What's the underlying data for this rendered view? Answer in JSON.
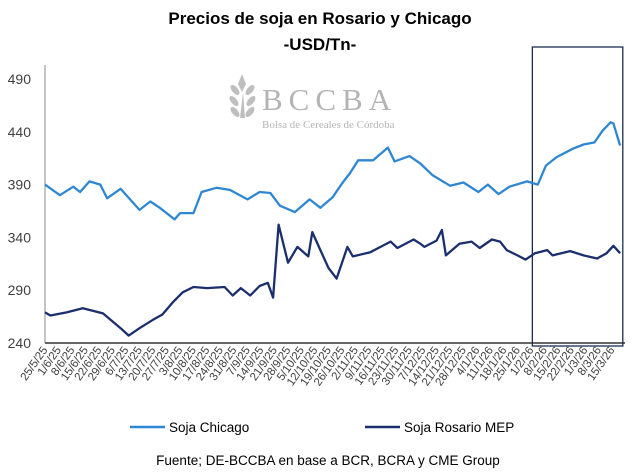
{
  "chart_data": {
    "type": "line",
    "title": "Precios de soja en Rosario y Chicago",
    "subtitle": "-USD/Tn-",
    "xlabel": "",
    "ylabel": "",
    "ylim": [
      240,
      490
    ],
    "yticks": [
      490,
      440,
      390,
      340,
      290,
      240
    ],
    "x_unit": "weeks since 25/5/25",
    "xlim": [
      0,
      43
    ],
    "x_tick_labels": [
      "25/5/25",
      "1/6/25",
      "8/6/25",
      "15/6/25",
      "22/6/25",
      "29/6/25",
      "6/7/25",
      "13/7/25",
      "20/7/25",
      "27/7/25",
      "3/8/25",
      "10/8/25",
      "17/8/25",
      "24/8/25",
      "31/8/25",
      "7/9/25",
      "14/9/25",
      "21/9/25",
      "28/9/25",
      "5/10/25",
      "12/10/25",
      "19/10/25",
      "26/10/25",
      "2/11/25",
      "9/11/25",
      "16/11/25",
      "23/11/25",
      "30/11/25",
      "7/12/25",
      "14/12/25",
      "21/12/25",
      "28/12/25",
      "4/1/26",
      "11/1/26",
      "18/1/26",
      "25/1/26",
      "1/2/26",
      "8/2/26",
      "15/2/26",
      "22/2/26",
      "1/3/26",
      "8/3/26",
      "15/3/26"
    ],
    "grid": false,
    "legend_placement": "bottom",
    "highlight_range_weeks": [
      36.1,
      42.8
    ],
    "series": [
      {
        "name": "Soja Chicago",
        "color": "#2F87D3",
        "x": [
          0,
          1.1,
          2.1,
          2.6,
          3.3,
          4.1,
          4.6,
          5.6,
          7.0,
          7.8,
          8.5,
          9.6,
          10.0,
          11.0,
          11.6,
          12.7,
          13.7,
          15.0,
          15.9,
          16.7,
          17.4,
          18.5,
          19.6,
          20.4,
          21.3,
          22.0,
          22.6,
          23.2,
          24.3,
          25.4,
          25.9,
          27.0,
          27.8,
          28.7,
          30.0,
          31.0,
          32.1,
          32.8,
          33.6,
          34.4,
          35.7,
          36.5,
          37.1,
          37.9,
          39.1,
          39.9,
          40.7,
          41.3,
          41.9,
          42.1,
          42.6
        ],
        "y": [
          390,
          380,
          388,
          383,
          393,
          390,
          377,
          386,
          366,
          374,
          368,
          357,
          363,
          363,
          383,
          387,
          385,
          376,
          383,
          382,
          370,
          364,
          376,
          368,
          378,
          391,
          401,
          413,
          413,
          425,
          412,
          417,
          410,
          399,
          389,
          392,
          383,
          390,
          381,
          388,
          393,
          390,
          408,
          416,
          424,
          428,
          430,
          441,
          449,
          448,
          427
        ]
      },
      {
        "name": "Soja Rosario MEP",
        "color": "#1B2E6E",
        "x": [
          0,
          0.4,
          1.6,
          2.8,
          4.3,
          5.6,
          6.2,
          7.0,
          8.0,
          8.7,
          9.5,
          10.2,
          11.0,
          12.0,
          13.3,
          13.9,
          14.5,
          15.2,
          15.9,
          16.5,
          16.9,
          17.3,
          18.0,
          18.7,
          19.5,
          19.8,
          20.4,
          21.0,
          21.6,
          22.4,
          22.8,
          24.1,
          25.6,
          26.1,
          27.3,
          27.8,
          28.1,
          29.0,
          29.4,
          29.7,
          30.7,
          31.6,
          32.2,
          33.1,
          33.7,
          34.2,
          35.0,
          35.6,
          36.3,
          37.2,
          37.6,
          38.9,
          39.9,
          40.9,
          41.6,
          42.1,
          42.6
        ],
        "y": [
          269,
          266,
          269,
          273,
          268,
          254,
          247,
          254,
          262,
          267,
          279,
          288,
          293,
          292,
          293,
          285,
          292,
          285,
          294,
          297,
          283,
          352,
          316,
          331,
          322,
          345,
          328,
          311,
          301,
          331,
          322,
          326,
          336,
          330,
          338,
          334,
          331,
          337,
          347,
          323,
          334,
          336,
          330,
          338,
          336,
          328,
          323,
          319,
          325,
          328,
          323,
          327,
          323,
          320,
          325,
          332,
          325
        ]
      }
    ],
    "source": "Fuente; DE-BCCBA en base a BCR, BCRA y CME Group",
    "logo": {
      "name": "BCCBA",
      "subtitle": "Bolsa de Cereales de Córdoba"
    }
  }
}
